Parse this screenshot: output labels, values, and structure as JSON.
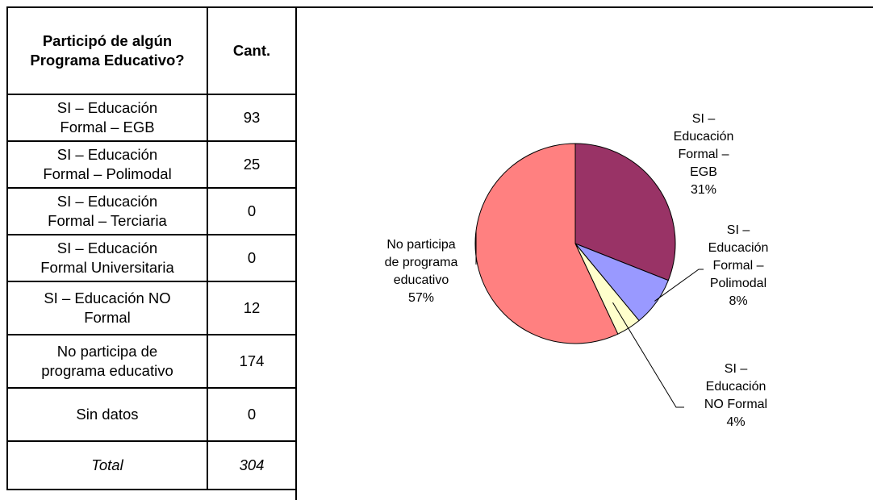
{
  "table": {
    "headers": [
      "Participó de algún Programa Educativo?",
      "Cant."
    ],
    "rows": [
      {
        "label_lines": [
          "SI – Educación",
          "Formal – EGB"
        ],
        "value": "93"
      },
      {
        "label_lines": [
          "SI – Educación",
          "Formal – Polimodal"
        ],
        "value": "25"
      },
      {
        "label_lines": [
          "SI – Educación",
          "Formal – Terciaria"
        ],
        "value": "0"
      },
      {
        "label_lines": [
          "SI – Educación",
          "Formal Universitaria"
        ],
        "value": "0"
      },
      {
        "label_lines": [
          "SI – Educación NO",
          "Formal"
        ],
        "value": "12"
      },
      {
        "label_lines": [
          "No participa de",
          "programa educativo"
        ],
        "value": "174"
      },
      {
        "label_lines": [
          "Sin datos"
        ],
        "value": "0"
      }
    ],
    "total": {
      "label": "Total",
      "value": "304"
    }
  },
  "chart_data": {
    "type": "pie",
    "title": "",
    "slices": [
      {
        "label_lines": [
          "SI –",
          "Educación",
          "Formal –",
          "EGB",
          "31%"
        ],
        "value": 31,
        "color": "#993366"
      },
      {
        "label_lines": [
          "SI –",
          "Educación",
          "Formal –",
          "Polimodal",
          "8%"
        ],
        "value": 8,
        "color": "#9999FF"
      },
      {
        "label_lines": [
          "SI –",
          "Educación",
          "NO Formal",
          "4%"
        ],
        "value": 4,
        "color": "#FFFFCC"
      },
      {
        "label_lines": [
          "No participa",
          "de programa",
          "educativo",
          "57%"
        ],
        "value": 57,
        "color": "#FF8080"
      }
    ]
  }
}
